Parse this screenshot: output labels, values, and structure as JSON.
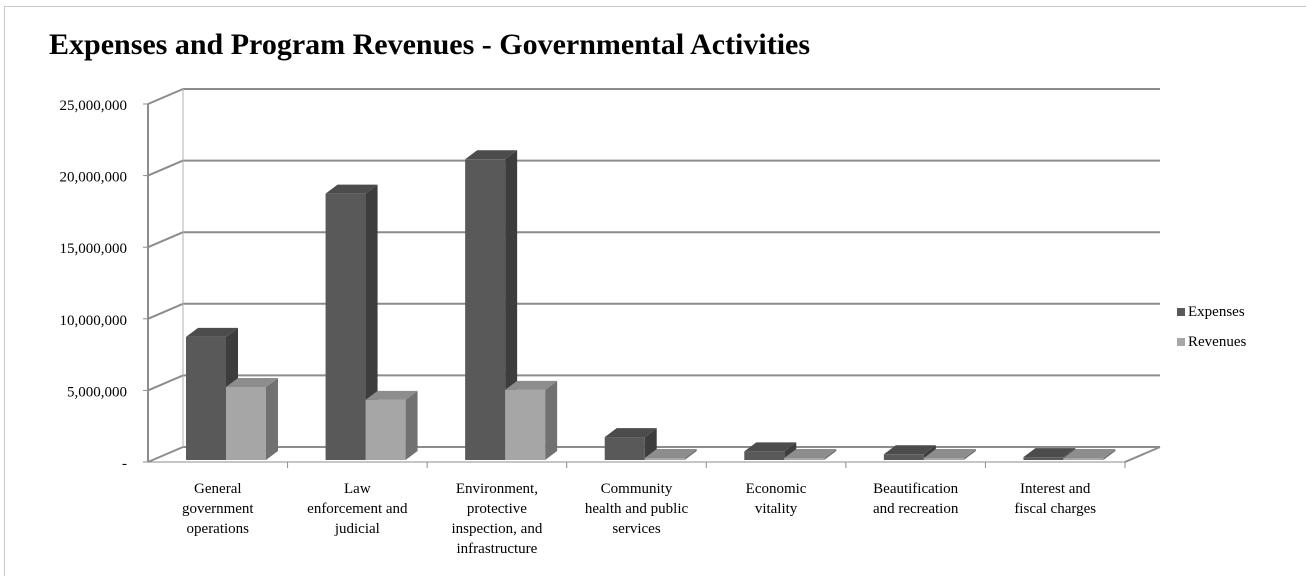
{
  "chart_data": {
    "type": "bar",
    "title": "Expenses and Program Revenues - Governmental Activities",
    "xlabel": "",
    "ylabel": "",
    "ylim": [
      0,
      25000000
    ],
    "y_ticks": [
      "-",
      "5,000,000",
      "10,000,000",
      "15,000,000",
      "20,000,000",
      "25,000,000"
    ],
    "y_tick_values": [
      0,
      5000000,
      10000000,
      15000000,
      20000000,
      25000000
    ],
    "grid": true,
    "legend_position": "right",
    "categories": [
      "General government operations",
      "Law enforcement and judicial",
      "Environment, protective inspection, and infrastructure",
      "Community health and public services",
      "Economic vitality",
      "Beautification and recreation",
      "Interest and fiscal charges"
    ],
    "category_lines": [
      [
        "General",
        "government",
        "operations"
      ],
      [
        "Law",
        "enforcement and",
        "judicial"
      ],
      [
        "Environment,",
        "protective",
        "inspection, and",
        "infrastructure"
      ],
      [
        "Community",
        "health and public",
        "services"
      ],
      [
        "Economic",
        "vitality"
      ],
      [
        "Beautification",
        "and recreation"
      ],
      [
        "Interest and",
        "fiscal charges"
      ]
    ],
    "series": [
      {
        "name": "Expenses",
        "color": "#595959",
        "values": [
          8600000,
          18600000,
          21000000,
          1600000,
          600000,
          400000,
          200000
        ]
      },
      {
        "name": "Revenues",
        "color": "#a6a6a6",
        "values": [
          5100000,
          4200000,
          4900000,
          100000,
          0,
          0,
          0
        ]
      }
    ]
  }
}
